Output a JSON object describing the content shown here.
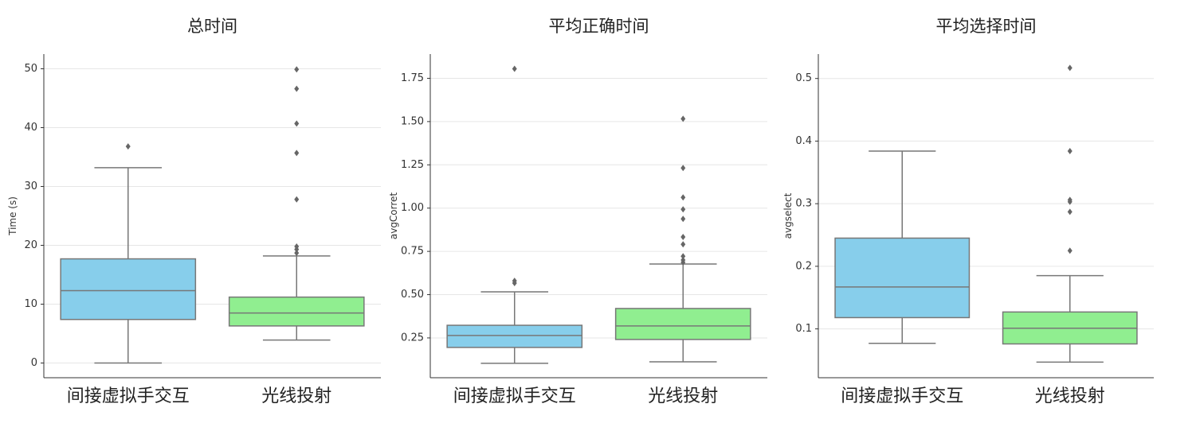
{
  "chart_data": [
    {
      "type": "box",
      "title": "总时间",
      "y_label": "Time (s)",
      "categories": [
        "间接虚拟手交互",
        "光线投射"
      ],
      "boxes": [
        {
          "color": "#87ceeb",
          "whisker_low": 0,
          "q1": 7.4,
          "median": 12.3,
          "q3": 17.7,
          "whisker_high": 33.2,
          "fliers": [
            36.8
          ]
        },
        {
          "color": "#90ee90",
          "whisker_low": 3.9,
          "q1": 6.3,
          "median": 8.5,
          "q3": 11.2,
          "whisker_high": 18.2,
          "fliers": [
            49.9,
            46.6,
            40.7,
            35.7,
            27.8,
            19.8,
            19.3,
            18.7
          ]
        }
      ],
      "ylim": [
        -2.5,
        52.5
      ],
      "yticks": [
        0,
        10,
        20,
        30,
        40,
        50
      ],
      "grid": true
    },
    {
      "type": "box",
      "title": "平均正确时间",
      "y_label": "avgCorret",
      "categories": [
        "间接虚拟手交互",
        "光线投射"
      ],
      "boxes": [
        {
          "color": "#87ceeb",
          "whisker_low": 0.103,
          "q1": 0.195,
          "median": 0.264,
          "q3": 0.323,
          "whisker_high": 0.516,
          "fliers": [
            1.805,
            0.58,
            0.567
          ]
        },
        {
          "color": "#90ee90",
          "whisker_low": 0.112,
          "q1": 0.241,
          "median": 0.319,
          "q3": 0.42,
          "whisker_high": 0.677,
          "fliers": [
            1.516,
            1.232,
            1.062,
            0.993,
            0.938,
            0.833,
            0.791,
            0.722,
            0.7,
            0.686
          ]
        }
      ],
      "ylim": [
        0.02,
        1.89
      ],
      "yticks": [
        0.25,
        {
          "value": 0.5,
          "label": "0.50"
        },
        0.75,
        {
          "value": 1,
          "label": "1.00"
        },
        1.25,
        {
          "value": 1.5,
          "label": "1.50"
        },
        1.75
      ],
      "grid": true
    },
    {
      "type": "box",
      "title": "平均选择时间",
      "y_label": "avgselect",
      "categories": [
        "间接虚拟手交互",
        "光线投射"
      ],
      "boxes": [
        {
          "color": "#87ceeb",
          "whisker_low": 0.077,
          "q1": 0.118,
          "median": 0.167,
          "q3": 0.245,
          "whisker_high": 0.384,
          "fliers": []
        },
        {
          "color": "#90ee90",
          "whisker_low": 0.047,
          "q1": 0.076,
          "median": 0.101,
          "q3": 0.127,
          "whisker_high": 0.185,
          "fliers": [
            0.517,
            0.384,
            0.306,
            0.303,
            0.287,
            0.225
          ]
        }
      ],
      "ylim": [
        0.022,
        0.539
      ],
      "yticks": [
        0.1,
        0.2,
        0.3,
        0.4,
        0.5
      ],
      "grid": true
    }
  ]
}
